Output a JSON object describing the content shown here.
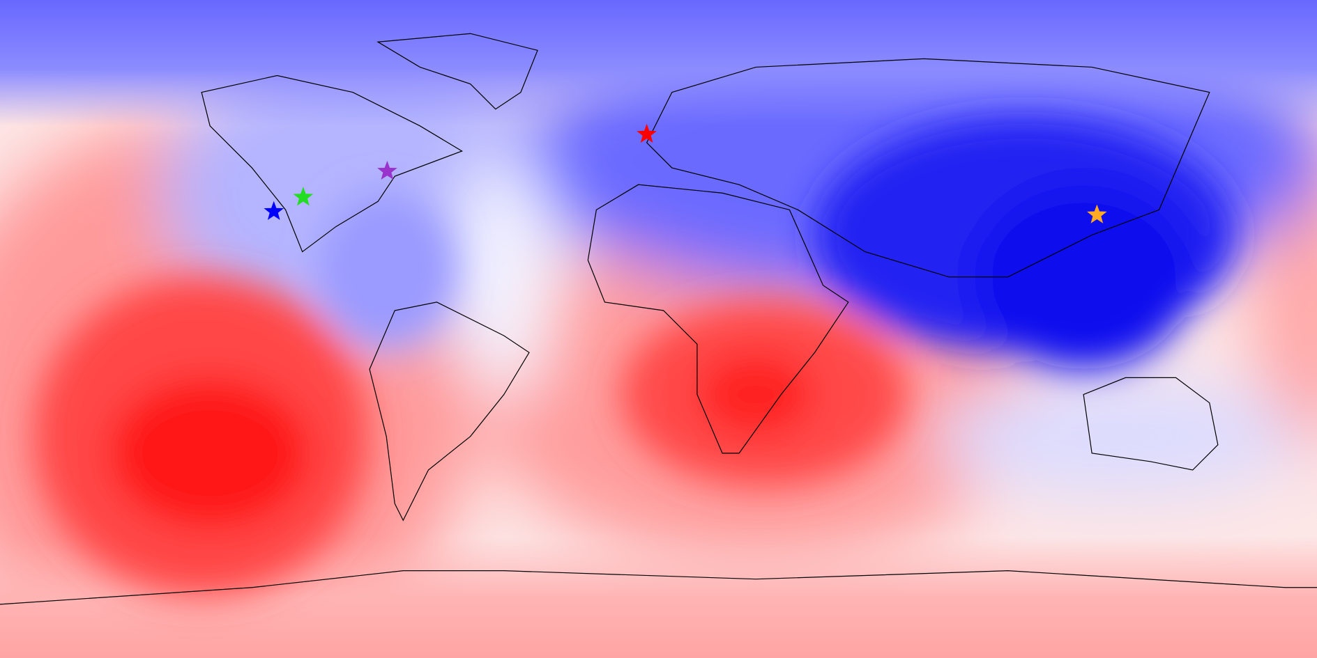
{
  "markers": [
    {
      "color": "#0000ff"
    },
    {
      "color": "#22dd22"
    },
    {
      "color": "#9933cc"
    },
    {
      "color": "#ff0000"
    },
    {
      "color": "#ffaa22"
    }
  ]
}
